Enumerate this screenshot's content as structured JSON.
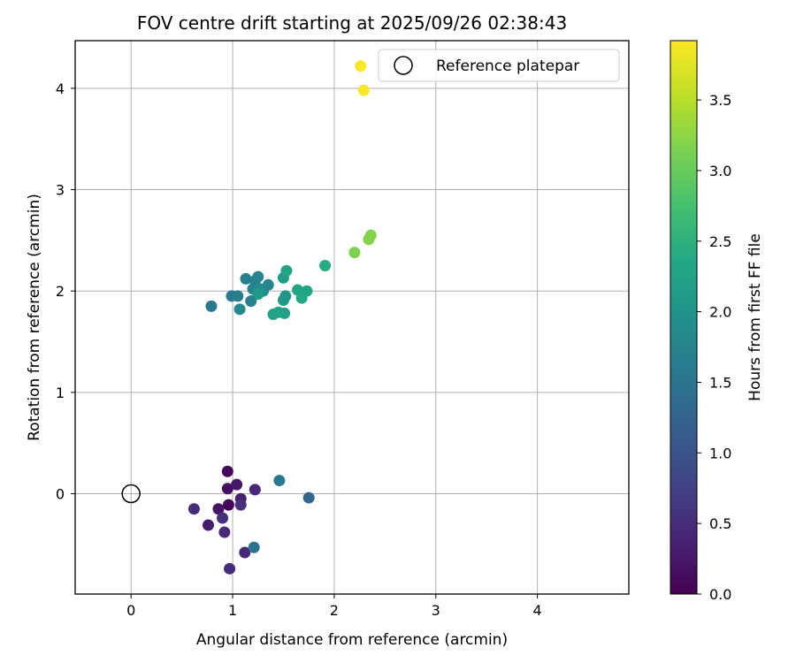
{
  "chart_data": {
    "type": "scatter",
    "title": "FOV centre drift starting at 2025/09/26 02:38:43",
    "xlabel": "Angular distance from reference (arcmin)",
    "ylabel": "Rotation from reference (arcmin)",
    "xlim": [
      -0.55,
      4.9
    ],
    "ylim": [
      -0.99,
      4.47
    ],
    "xticks": [
      0,
      1,
      2,
      3,
      4
    ],
    "yticks": [
      0,
      1,
      2,
      3,
      4
    ],
    "grid": true,
    "legend": {
      "position": "top-right",
      "label": "Reference platepar"
    },
    "reference_point": {
      "x": 0,
      "y": 0
    },
    "colorbar": {
      "label": "Hours from first FF file",
      "colormap": "viridis",
      "min": 0.0,
      "max": 3.92,
      "ticks": [
        0.0,
        0.5,
        1.0,
        1.5,
        2.0,
        2.5,
        3.0,
        3.5
      ],
      "tick_labels": [
        "0.0",
        "0.5",
        "1.0",
        "1.5",
        "2.0",
        "2.5",
        "3.0",
        "3.5"
      ]
    },
    "points": [
      {
        "x": 0.95,
        "y": 0.22,
        "c": 0.05
      },
      {
        "x": 0.95,
        "y": 0.05,
        "c": 0.15
      },
      {
        "x": 1.04,
        "y": 0.09,
        "c": 0.25
      },
      {
        "x": 0.96,
        "y": -0.11,
        "c": 0.05
      },
      {
        "x": 1.08,
        "y": -0.05,
        "c": 0.35
      },
      {
        "x": 1.08,
        "y": -0.11,
        "c": 0.55
      },
      {
        "x": 1.22,
        "y": 0.04,
        "c": 0.45
      },
      {
        "x": 0.62,
        "y": -0.15,
        "c": 0.5
      },
      {
        "x": 0.86,
        "y": -0.15,
        "c": 0.2
      },
      {
        "x": 0.9,
        "y": -0.24,
        "c": 0.55
      },
      {
        "x": 0.76,
        "y": -0.31,
        "c": 0.3
      },
      {
        "x": 0.92,
        "y": -0.38,
        "c": 0.45
      },
      {
        "x": 0.97,
        "y": -0.74,
        "c": 0.5
      },
      {
        "x": 1.12,
        "y": -0.58,
        "c": 0.45
      },
      {
        "x": 1.21,
        "y": -0.53,
        "c": 1.5
      },
      {
        "x": 1.46,
        "y": 0.13,
        "c": 1.6
      },
      {
        "x": 1.75,
        "y": -0.04,
        "c": 1.3
      },
      {
        "x": 0.79,
        "y": 1.85,
        "c": 1.55
      },
      {
        "x": 0.99,
        "y": 1.95,
        "c": 1.6
      },
      {
        "x": 1.05,
        "y": 1.95,
        "c": 1.65
      },
      {
        "x": 1.07,
        "y": 1.82,
        "c": 1.85
      },
      {
        "x": 1.13,
        "y": 2.12,
        "c": 1.7
      },
      {
        "x": 1.18,
        "y": 1.9,
        "c": 1.7
      },
      {
        "x": 1.2,
        "y": 2.02,
        "c": 1.75
      },
      {
        "x": 1.22,
        "y": 2.1,
        "c": 1.7
      },
      {
        "x": 1.25,
        "y": 2.14,
        "c": 1.75
      },
      {
        "x": 1.27,
        "y": 2.02,
        "c": 1.85
      },
      {
        "x": 1.3,
        "y": 2.0,
        "c": 1.9
      },
      {
        "x": 1.35,
        "y": 2.06,
        "c": 1.8
      },
      {
        "x": 1.25,
        "y": 1.97,
        "c": 2.1
      },
      {
        "x": 1.4,
        "y": 1.77,
        "c": 2.2
      },
      {
        "x": 1.45,
        "y": 1.79,
        "c": 2.25
      },
      {
        "x": 1.5,
        "y": 1.91,
        "c": 2.1
      },
      {
        "x": 1.52,
        "y": 1.95,
        "c": 2.05
      },
      {
        "x": 1.5,
        "y": 2.13,
        "c": 2.15
      },
      {
        "x": 1.53,
        "y": 2.2,
        "c": 2.25
      },
      {
        "x": 1.51,
        "y": 1.78,
        "c": 2.2
      },
      {
        "x": 1.64,
        "y": 2.01,
        "c": 2.3
      },
      {
        "x": 1.68,
        "y": 1.93,
        "c": 2.35
      },
      {
        "x": 1.73,
        "y": 2.0,
        "c": 2.3
      },
      {
        "x": 1.91,
        "y": 2.25,
        "c": 2.4
      },
      {
        "x": 2.2,
        "y": 2.38,
        "c": 3.15
      },
      {
        "x": 2.34,
        "y": 2.51,
        "c": 3.2
      },
      {
        "x": 2.36,
        "y": 2.55,
        "c": 3.2
      },
      {
        "x": 2.26,
        "y": 4.22,
        "c": 3.9
      },
      {
        "x": 2.29,
        "y": 3.98,
        "c": 3.9
      }
    ]
  }
}
